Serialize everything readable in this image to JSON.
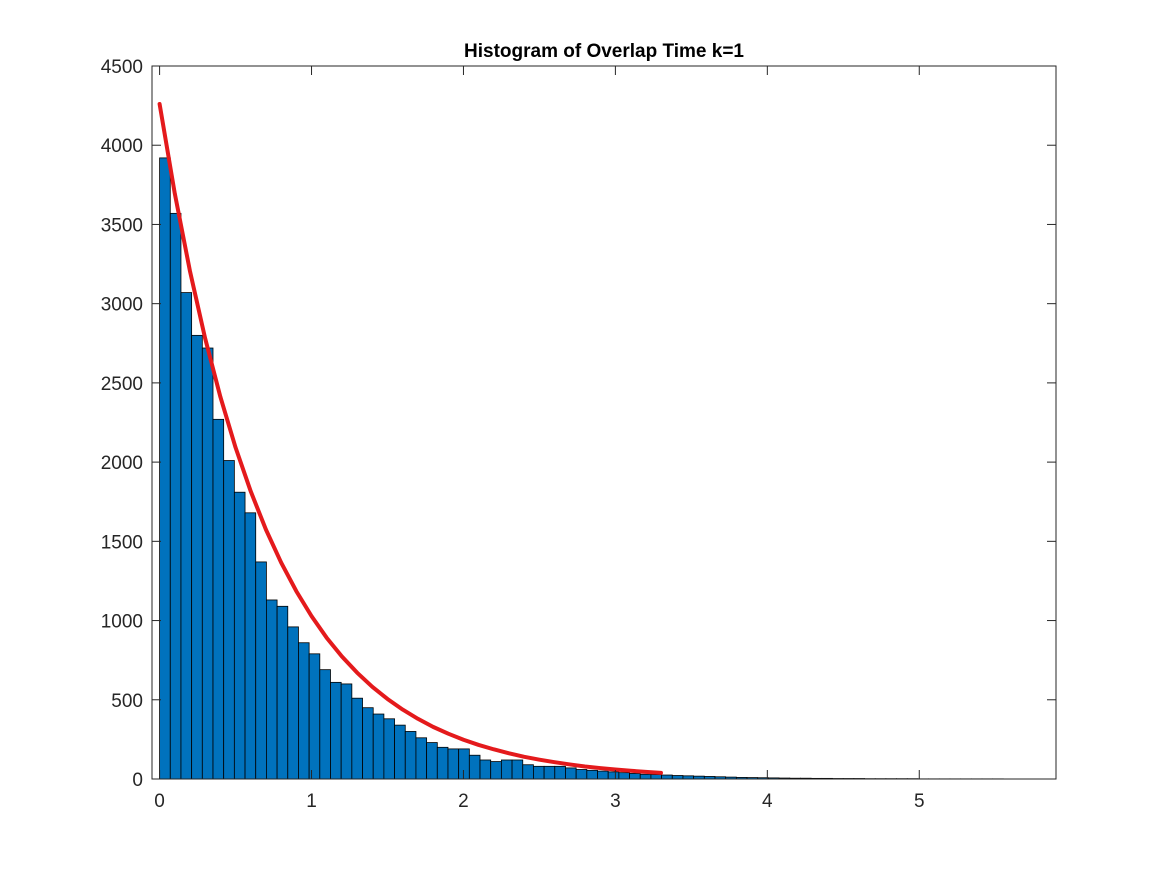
{
  "chart_data": {
    "type": "bar",
    "title": "Histogram of Overlap Time k=1",
    "xlabel": "",
    "ylabel": "",
    "xlim": [
      -0.05,
      5.9
    ],
    "ylim": [
      0,
      4500
    ],
    "xticks": [
      "0",
      "1",
      "2",
      "3",
      "4",
      "5"
    ],
    "yticks": [
      "0",
      "500",
      "1000",
      "1500",
      "2000",
      "2500",
      "3000",
      "3500",
      "4000",
      "4500"
    ],
    "grid": false,
    "legend": "none",
    "bin_width": 0.0703,
    "bin_start": 0.0,
    "series": [
      {
        "type": "histogram",
        "color": "#0072BD",
        "edge_color": "#000000",
        "values": [
          3920,
          3570,
          3070,
          2800,
          2720,
          2270,
          2010,
          1810,
          1680,
          1370,
          1130,
          1090,
          960,
          860,
          790,
          690,
          610,
          600,
          510,
          450,
          410,
          380,
          340,
          300,
          260,
          230,
          200,
          190,
          190,
          150,
          120,
          110,
          120,
          120,
          90,
          80,
          80,
          80,
          70,
          60,
          55,
          50,
          45,
          40,
          35,
          30,
          28,
          25,
          22,
          20,
          18,
          16,
          14,
          12,
          10,
          9,
          8,
          7,
          6,
          5,
          5,
          4,
          4,
          3,
          3,
          3,
          2,
          2,
          2,
          2,
          2,
          1,
          1,
          1,
          1,
          1,
          1,
          1,
          1,
          0,
          0,
          0,
          0
        ]
      },
      {
        "type": "line",
        "color": "#E41A1C",
        "x": [
          0.0,
          0.1,
          0.2,
          0.3,
          0.4,
          0.5,
          0.6,
          0.7,
          0.8,
          0.9,
          1.0,
          1.1,
          1.2,
          1.3,
          1.4,
          1.5,
          1.6,
          1.7,
          1.8,
          1.9,
          2.0,
          2.1,
          2.2,
          2.3,
          2.4,
          2.5,
          2.6,
          2.7,
          2.8,
          2.9,
          3.0,
          3.1,
          3.2,
          3.3
        ],
        "y": [
          4260,
          3695,
          3205,
          2780,
          2412,
          2092,
          1815,
          1574,
          1366,
          1185,
          1028,
          891,
          773,
          671,
          582,
          505,
          438,
          380,
          329,
          286,
          248,
          215,
          187,
          162,
          140,
          122,
          106,
          92,
          79,
          69,
          60,
          52,
          45,
          39
        ]
      }
    ]
  }
}
